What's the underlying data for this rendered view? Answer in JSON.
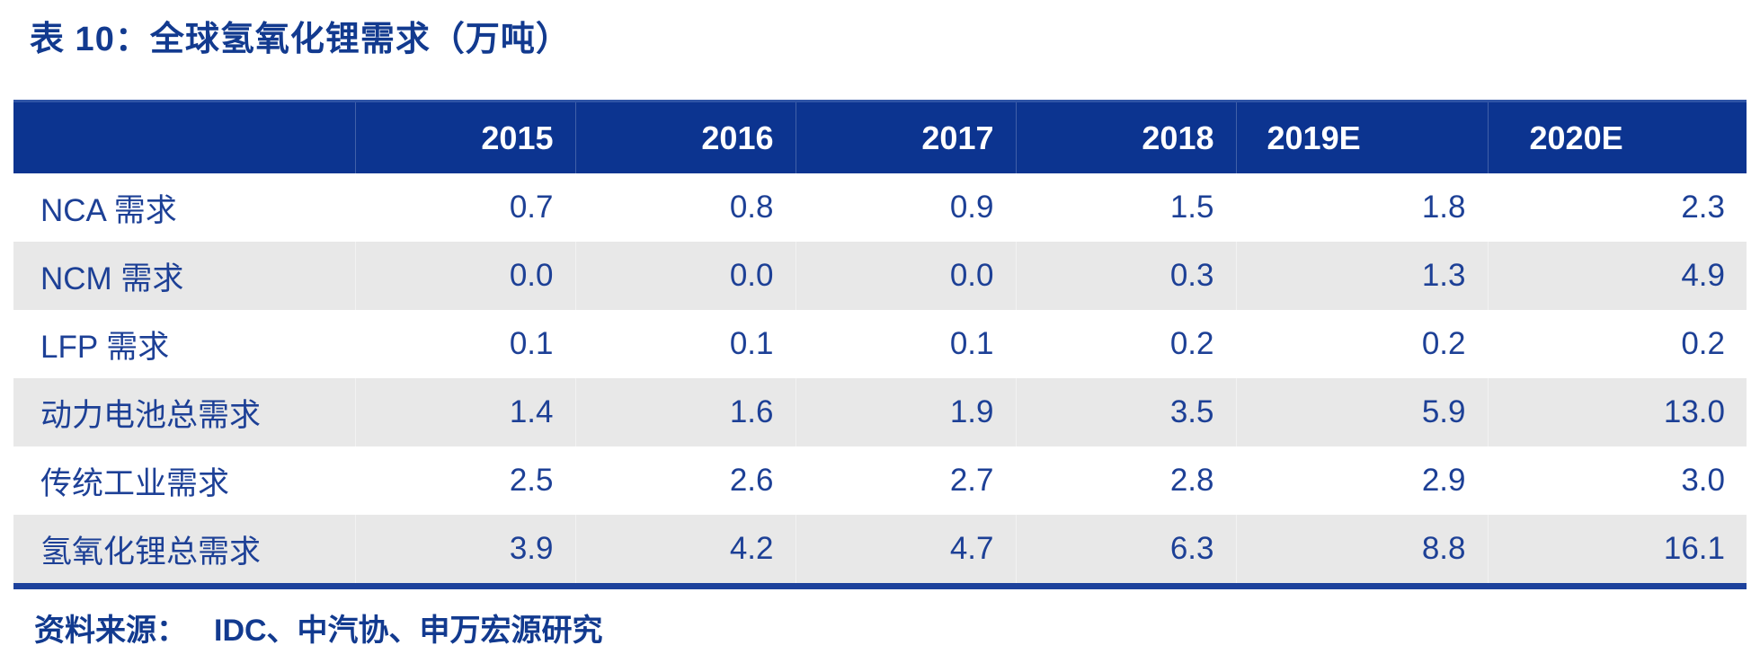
{
  "title": "表 10：全球氢氧化锂需求（万吨）",
  "source": {
    "label": "资料来源：",
    "text": "IDC、中汽协、申万宏源研究"
  },
  "colors": {
    "header_bg": "#0c3490",
    "header_text": "#ffffff",
    "body_text": "#1d4096",
    "title_text": "#123a8f",
    "stripe_gray": "#e8e8e8",
    "bottom_border": "#1d419c"
  },
  "table": {
    "columns": [
      "",
      "2015",
      "2016",
      "2017",
      "2018",
      "2019E",
      "2020E"
    ],
    "rows": [
      {
        "label": "NCA 需求",
        "values": [
          "0.7",
          "0.8",
          "0.9",
          "1.5",
          "1.8",
          "2.3"
        ]
      },
      {
        "label": "NCM 需求",
        "values": [
          "0.0",
          "0.0",
          "0.0",
          "0.3",
          "1.3",
          "4.9"
        ]
      },
      {
        "label": "LFP 需求",
        "values": [
          "0.1",
          "0.1",
          "0.1",
          "0.2",
          "0.2",
          "0.2"
        ]
      },
      {
        "label": "动力电池总需求",
        "values": [
          "1.4",
          "1.6",
          "1.9",
          "3.5",
          "5.9",
          "13.0"
        ]
      },
      {
        "label": "传统工业需求",
        "values": [
          "2.5",
          "2.6",
          "2.7",
          "2.8",
          "2.9",
          "3.0"
        ]
      },
      {
        "label": "氢氧化锂总需求",
        "values": [
          "3.9",
          "4.2",
          "4.7",
          "6.3",
          "8.8",
          "16.1"
        ]
      }
    ]
  },
  "chart_data": {
    "type": "table",
    "title": "全球氢氧化锂需求（万吨）",
    "categories": [
      "2015",
      "2016",
      "2017",
      "2018",
      "2019E",
      "2020E"
    ],
    "series": [
      {
        "name": "NCA 需求",
        "values": [
          0.7,
          0.8,
          0.9,
          1.5,
          1.8,
          2.3
        ]
      },
      {
        "name": "NCM 需求",
        "values": [
          0.0,
          0.0,
          0.0,
          0.3,
          1.3,
          4.9
        ]
      },
      {
        "name": "LFP 需求",
        "values": [
          0.1,
          0.1,
          0.1,
          0.2,
          0.2,
          0.2
        ]
      },
      {
        "name": "动力电池总需求",
        "values": [
          1.4,
          1.6,
          1.9,
          3.5,
          5.9,
          13.0
        ]
      },
      {
        "name": "传统工业需求",
        "values": [
          2.5,
          2.6,
          2.7,
          2.8,
          2.9,
          3.0
        ]
      },
      {
        "name": "氢氧化锂总需求",
        "values": [
          3.9,
          4.2,
          4.7,
          6.3,
          8.8,
          16.1
        ]
      }
    ]
  }
}
